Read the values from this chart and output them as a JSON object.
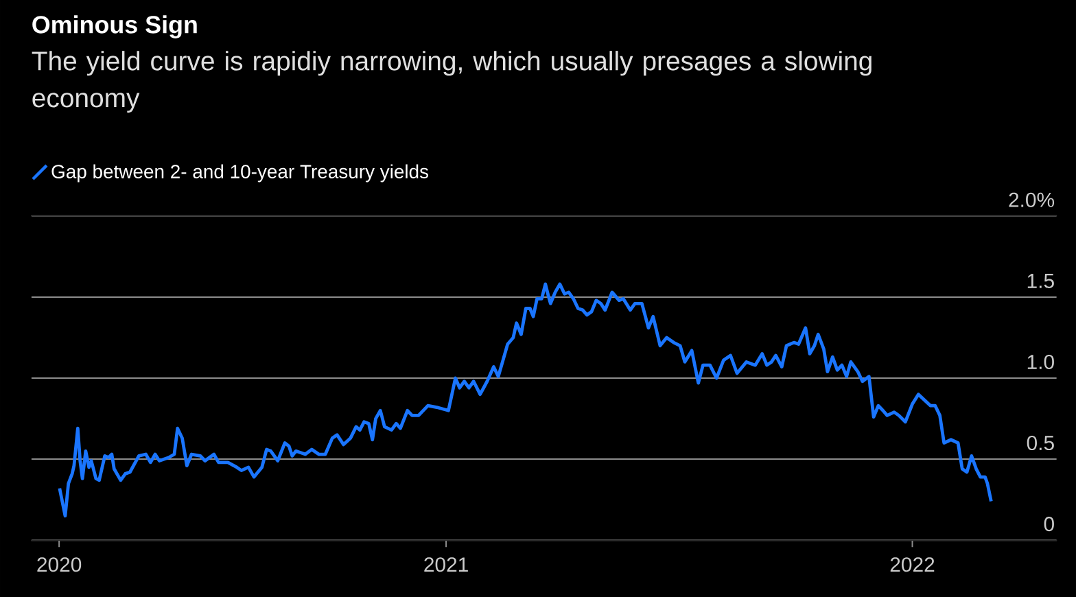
{
  "chart_data": {
    "type": "line",
    "title": "Ominous Sign",
    "subtitle": "The yield curve is rapidiy narrowing, which usually presages a slowing economy",
    "x": [
      2020.171,
      2020.183,
      2020.19,
      2020.198,
      2020.202,
      2020.21,
      2020.215,
      2020.22,
      2020.227,
      2020.234,
      2020.239,
      2020.249,
      2020.256,
      2020.268,
      2020.276,
      2020.283,
      2020.288,
      2020.302,
      2020.312,
      2020.322,
      2020.341,
      2020.356,
      2020.366,
      2020.376,
      2020.385,
      2020.405,
      2020.417,
      2020.424,
      2020.434,
      2020.444,
      2020.454,
      2020.473,
      2020.483,
      2020.502,
      2020.512,
      2020.532,
      2020.551,
      2020.561,
      2020.576,
      2020.588,
      2020.605,
      2020.615,
      2020.624,
      2020.639,
      2020.654,
      2020.663,
      2020.67,
      2020.678,
      2020.698,
      2020.712,
      2020.727,
      2020.741,
      2020.756,
      2020.766,
      2020.78,
      2020.795,
      2020.807,
      2020.815,
      2020.824,
      2020.834,
      2020.842,
      2020.849,
      2020.859,
      2020.868,
      2020.883,
      2020.893,
      2020.902,
      2020.917,
      2020.927,
      2020.941,
      2020.961,
      2020.98,
      2021.005,
      2021.02,
      2021.029,
      2021.039,
      2021.049,
      2021.059,
      2021.073,
      2021.088,
      2021.102,
      2021.112,
      2021.122,
      2021.132,
      2021.144,
      2021.151,
      2021.161,
      2021.171,
      2021.18,
      2021.187,
      2021.195,
      2021.205,
      2021.213,
      2021.22,
      2021.224,
      2021.234,
      2021.244,
      2021.254,
      2021.263,
      2021.273,
      2021.283,
      2021.293,
      2021.302,
      2021.312,
      2021.322,
      2021.332,
      2021.341,
      2021.356,
      2021.371,
      2021.38,
      2021.395,
      2021.405,
      2021.42,
      2021.434,
      2021.444,
      2021.459,
      2021.473,
      2021.488,
      2021.502,
      2021.512,
      2021.527,
      2021.541,
      2021.551,
      2021.566,
      2021.58,
      2021.595,
      2021.61,
      2021.624,
      2021.644,
      2021.663,
      2021.678,
      2021.688,
      2021.698,
      2021.707,
      2021.72,
      2021.73,
      2021.746,
      2021.756,
      2021.771,
      2021.78,
      2021.79,
      2021.798,
      2021.81,
      2021.818,
      2021.829,
      2021.839,
      2021.849,
      2021.859,
      2021.868,
      2021.883,
      2021.893,
      2021.907,
      2021.917,
      2021.927,
      2021.937,
      2021.946,
      2021.961,
      2021.971,
      2021.985,
      2022.0,
      2022.013,
      2022.024,
      2022.039,
      2022.049,
      2022.059,
      2022.068,
      2022.083,
      2022.098,
      2022.107,
      2022.117,
      2022.127,
      2022.137,
      2022.146,
      2022.156,
      2022.161,
      2022.169
    ],
    "series": [
      {
        "name": "Gap between 2- and 10-year Treasury yields",
        "color": "#1a75ff",
        "values": [
          0.32,
          0.15,
          0.35,
          0.41,
          0.46,
          0.69,
          0.49,
          0.38,
          0.55,
          0.45,
          0.49,
          0.38,
          0.37,
          0.52,
          0.51,
          0.53,
          0.44,
          0.37,
          0.41,
          0.42,
          0.52,
          0.53,
          0.48,
          0.53,
          0.49,
          0.51,
          0.53,
          0.69,
          0.63,
          0.46,
          0.53,
          0.52,
          0.49,
          0.53,
          0.48,
          0.48,
          0.45,
          0.43,
          0.45,
          0.39,
          0.45,
          0.56,
          0.55,
          0.49,
          0.6,
          0.58,
          0.52,
          0.55,
          0.53,
          0.56,
          0.53,
          0.53,
          0.63,
          0.65,
          0.59,
          0.63,
          0.7,
          0.68,
          0.73,
          0.72,
          0.62,
          0.75,
          0.8,
          0.7,
          0.68,
          0.72,
          0.69,
          0.8,
          0.77,
          0.77,
          0.83,
          0.82,
          0.8,
          1.0,
          0.94,
          0.98,
          0.94,
          0.98,
          0.9,
          0.98,
          1.07,
          1.01,
          1.11,
          1.21,
          1.25,
          1.34,
          1.27,
          1.43,
          1.43,
          1.38,
          1.49,
          1.49,
          1.58,
          1.5,
          1.46,
          1.53,
          1.58,
          1.52,
          1.53,
          1.49,
          1.43,
          1.42,
          1.39,
          1.41,
          1.48,
          1.46,
          1.42,
          1.53,
          1.48,
          1.49,
          1.42,
          1.46,
          1.46,
          1.31,
          1.38,
          1.2,
          1.25,
          1.22,
          1.2,
          1.1,
          1.17,
          0.97,
          1.08,
          1.08,
          1.0,
          1.11,
          1.14,
          1.03,
          1.1,
          1.08,
          1.15,
          1.08,
          1.1,
          1.14,
          1.07,
          1.2,
          1.22,
          1.21,
          1.31,
          1.15,
          1.2,
          1.27,
          1.18,
          1.04,
          1.13,
          1.05,
          1.08,
          1.01,
          1.1,
          1.04,
          0.98,
          1.01,
          0.76,
          0.83,
          0.8,
          0.77,
          0.79,
          0.77,
          0.73,
          0.84,
          0.9,
          0.87,
          0.83,
          0.83,
          0.77,
          0.6,
          0.62,
          0.6,
          0.44,
          0.42,
          0.52,
          0.44,
          0.39,
          0.39,
          0.35,
          0.24
        ]
      }
    ],
    "xlim": [
      2020.11,
      2022.31
    ],
    "xticks": [
      {
        "value": 2020.17,
        "label": "2020"
      },
      2021,
      2022
    ],
    "ylim": [
      0,
      2
    ],
    "yticks": [
      0,
      0.5,
      {
        "value": 1,
        "label": "1.0"
      },
      1.5,
      {
        "value": 2,
        "label": "2.0%"
      }
    ],
    "grid": "y",
    "legend": "top left"
  }
}
